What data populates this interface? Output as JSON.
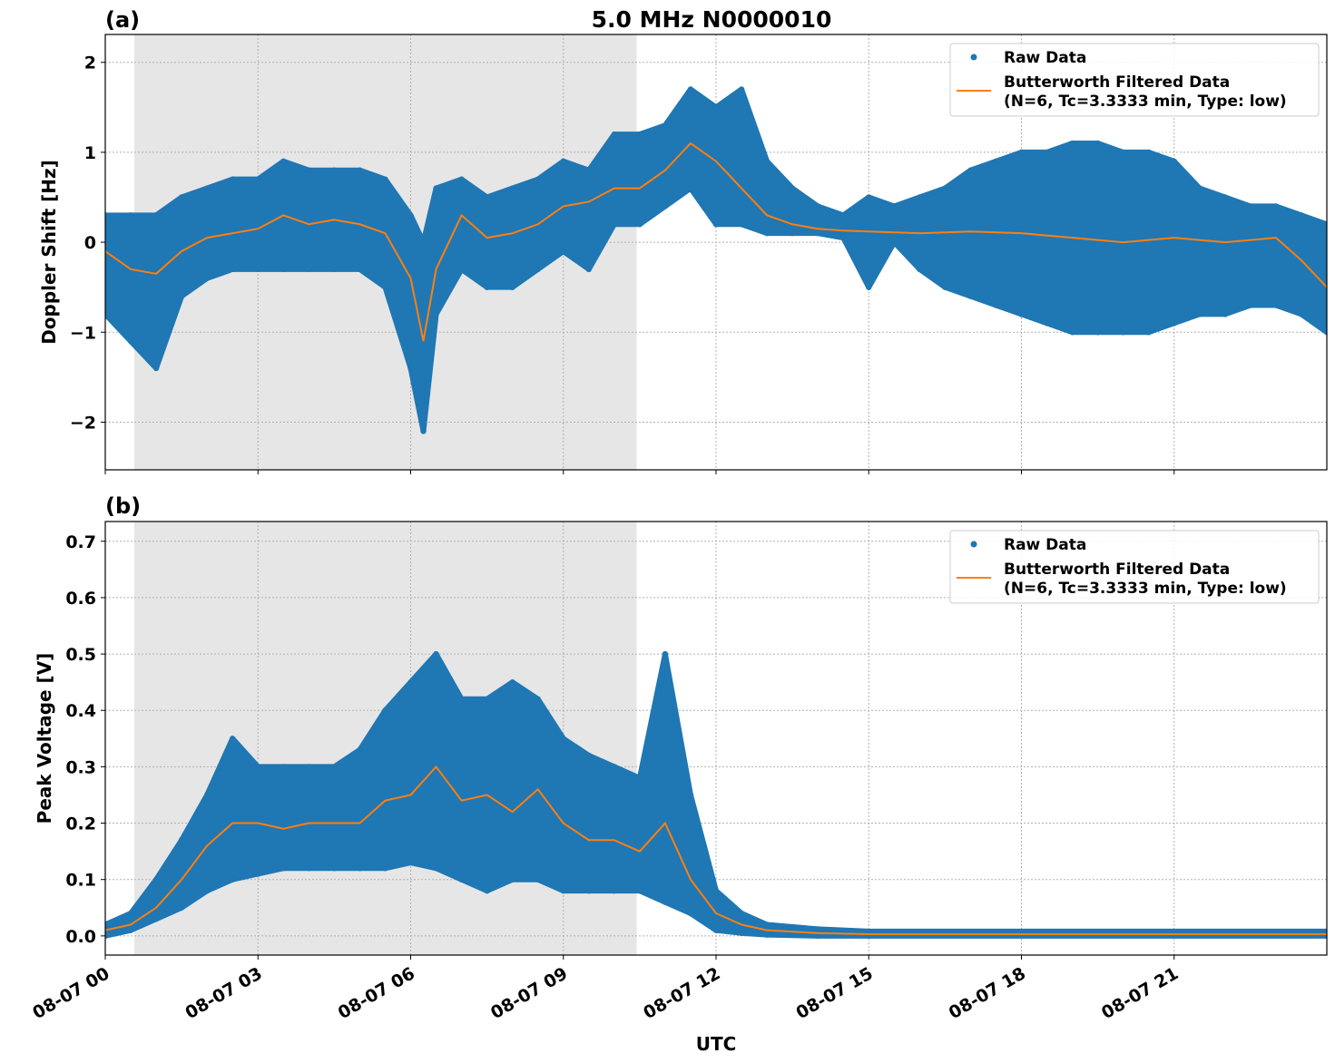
{
  "chart_data": [
    {
      "panel_label": "(a)",
      "title": "5.0 MHz N0000010",
      "type": "scatter+line",
      "xlabel": "",
      "ylabel": "Doppler Shift [Hz]",
      "x_unit": "hours UTC on 08-07",
      "xlim": [
        0,
        24
      ],
      "ylim": [
        -2.53,
        2.31
      ],
      "yticks": [
        2,
        1,
        0,
        -1,
        -2
      ],
      "ytick_labels": [
        "2",
        "1",
        "0",
        "−1",
        "−2"
      ],
      "xticks": [
        0,
        3,
        6,
        9,
        12,
        15,
        18,
        21
      ],
      "xtick_labels": [
        "08-07 00",
        "08-07 03",
        "08-07 06",
        "08-07 09",
        "08-07 12",
        "08-07 15",
        "08-07 18",
        "08-07 21"
      ],
      "grid": true,
      "shaded_interval": [
        0.57,
        10.44
      ],
      "legend": {
        "placement": "top-right",
        "entries": [
          "Raw Data",
          "Butterworth Filtered Data",
          "(N=6, Tc=3.3333 min, Type: low)"
        ]
      },
      "colors": {
        "raw": "#1f77b4",
        "filtered": "#ff7f0e",
        "shade": "#e6e6e6"
      },
      "series": [
        {
          "name": "Raw Data",
          "kind": "scatter-envelope",
          "x": [
            0,
            0.5,
            1,
            1.5,
            2,
            2.5,
            3,
            3.5,
            4,
            4.5,
            5,
            5.5,
            6,
            6.25,
            6.5,
            7,
            7.5,
            8,
            8.5,
            9,
            9.5,
            10,
            10.5,
            11,
            11.5,
            12,
            12.5,
            13,
            13.5,
            14,
            14.5,
            15,
            15.5,
            16,
            16.5,
            17,
            17.5,
            18,
            18.5,
            19,
            19.5,
            20,
            20.5,
            21,
            21.5,
            22,
            22.5,
            23,
            23.5,
            24
          ],
          "upper": [
            0.3,
            0.3,
            0.3,
            0.5,
            0.6,
            0.7,
            0.7,
            0.9,
            0.8,
            0.8,
            0.8,
            0.7,
            0.3,
            0.0,
            0.6,
            0.7,
            0.5,
            0.6,
            0.7,
            0.9,
            0.8,
            1.2,
            1.2,
            1.3,
            1.7,
            1.5,
            1.7,
            0.9,
            0.6,
            0.4,
            0.3,
            0.5,
            0.4,
            0.5,
            0.6,
            0.8,
            0.9,
            1.0,
            1.0,
            1.1,
            1.1,
            1.0,
            1.0,
            0.9,
            0.6,
            0.5,
            0.4,
            0.4,
            0.3,
            0.2
          ],
          "lower": [
            -0.8,
            -1.1,
            -1.4,
            -0.6,
            -0.4,
            -0.3,
            -0.3,
            -0.3,
            -0.3,
            -0.3,
            -0.3,
            -0.5,
            -1.4,
            -2.1,
            -0.8,
            -0.3,
            -0.5,
            -0.5,
            -0.3,
            -0.1,
            -0.3,
            0.2,
            0.2,
            0.4,
            0.6,
            0.2,
            0.2,
            0.1,
            0.1,
            0.1,
            0.05,
            -0.5,
            0.0,
            -0.3,
            -0.5,
            -0.6,
            -0.7,
            -0.8,
            -0.9,
            -1.0,
            -1.0,
            -1.0,
            -1.0,
            -0.9,
            -0.8,
            -0.8,
            -0.7,
            -0.7,
            -0.8,
            -1.0
          ]
        },
        {
          "name": "Butterworth Filtered Data",
          "kind": "line",
          "x": [
            0,
            0.5,
            1,
            1.5,
            2,
            2.5,
            3,
            3.5,
            4,
            4.5,
            5,
            5.5,
            6,
            6.25,
            6.5,
            7,
            7.5,
            8,
            8.5,
            9,
            9.5,
            10,
            10.5,
            11,
            11.5,
            12,
            12.5,
            13,
            13.5,
            14,
            14.5,
            15,
            16,
            17,
            18,
            19,
            20,
            21,
            22,
            23,
            23.5,
            24
          ],
          "y": [
            -0.1,
            -0.3,
            -0.35,
            -0.1,
            0.05,
            0.1,
            0.15,
            0.3,
            0.2,
            0.25,
            0.2,
            0.1,
            -0.4,
            -1.1,
            -0.3,
            0.3,
            0.05,
            0.1,
            0.2,
            0.4,
            0.45,
            0.6,
            0.6,
            0.8,
            1.1,
            0.9,
            0.6,
            0.3,
            0.2,
            0.15,
            0.13,
            0.12,
            0.1,
            0.12,
            0.1,
            0.05,
            0.0,
            0.05,
            0.0,
            0.05,
            -0.2,
            -0.5
          ]
        }
      ]
    },
    {
      "panel_label": "(b)",
      "title": "",
      "type": "scatter+line",
      "xlabel": "UTC",
      "ylabel": "Peak Voltage [V]",
      "x_unit": "hours UTC on 08-07",
      "xlim": [
        0,
        24
      ],
      "ylim": [
        -0.034,
        0.735
      ],
      "yticks": [
        0.0,
        0.1,
        0.2,
        0.3,
        0.4,
        0.5,
        0.6,
        0.7
      ],
      "ytick_labels": [
        "0.0",
        "0.1",
        "0.2",
        "0.3",
        "0.4",
        "0.5",
        "0.6",
        "0.7"
      ],
      "xticks": [
        0,
        3,
        6,
        9,
        12,
        15,
        18,
        21
      ],
      "xtick_labels": [
        "08-07 00",
        "08-07 03",
        "08-07 06",
        "08-07 09",
        "08-07 12",
        "08-07 15",
        "08-07 18",
        "08-07 21"
      ],
      "grid": true,
      "shaded_interval": [
        0.57,
        10.44
      ],
      "legend": {
        "placement": "top-right",
        "entries": [
          "Raw Data",
          "Butterworth Filtered Data",
          "(N=6, Tc=3.3333 min, Type: low)"
        ]
      },
      "colors": {
        "raw": "#1f77b4",
        "filtered": "#ff7f0e",
        "shade": "#e6e6e6"
      },
      "series": [
        {
          "name": "Raw Data",
          "kind": "scatter-envelope",
          "x": [
            0,
            0.5,
            1,
            1.5,
            2,
            2.5,
            3,
            3.5,
            4,
            4.5,
            5,
            5.5,
            6,
            6.5,
            7,
            7.5,
            8,
            8.5,
            9,
            9.5,
            10,
            10.5,
            11,
            11.5,
            12,
            12.5,
            13,
            14,
            15,
            24
          ],
          "upper": [
            0.02,
            0.04,
            0.1,
            0.17,
            0.25,
            0.35,
            0.3,
            0.3,
            0.3,
            0.3,
            0.33,
            0.4,
            0.45,
            0.5,
            0.42,
            0.42,
            0.45,
            0.42,
            0.35,
            0.32,
            0.3,
            0.28,
            0.5,
            0.25,
            0.08,
            0.04,
            0.02,
            0.012,
            0.008,
            0.008
          ],
          "lower": [
            0.0,
            0.01,
            0.03,
            0.05,
            0.08,
            0.1,
            0.11,
            0.12,
            0.12,
            0.12,
            0.12,
            0.12,
            0.13,
            0.12,
            0.1,
            0.08,
            0.1,
            0.1,
            0.08,
            0.08,
            0.08,
            0.08,
            0.06,
            0.04,
            0.01,
            0.005,
            0.002,
            0.0,
            0.0,
            0.0
          ]
        },
        {
          "name": "Butterworth Filtered Data",
          "kind": "line",
          "x": [
            0,
            0.5,
            1,
            1.5,
            2,
            2.5,
            3,
            3.5,
            4,
            4.5,
            5,
            5.5,
            6,
            6.5,
            7,
            7.5,
            8,
            8.5,
            9,
            9.5,
            10,
            10.5,
            11,
            11.5,
            12,
            12.5,
            13,
            14,
            15,
            24
          ],
          "y": [
            0.01,
            0.02,
            0.05,
            0.1,
            0.16,
            0.2,
            0.2,
            0.19,
            0.2,
            0.2,
            0.2,
            0.24,
            0.25,
            0.3,
            0.24,
            0.25,
            0.22,
            0.26,
            0.2,
            0.17,
            0.17,
            0.15,
            0.2,
            0.1,
            0.04,
            0.02,
            0.01,
            0.005,
            0.003,
            0.003
          ]
        }
      ]
    }
  ]
}
